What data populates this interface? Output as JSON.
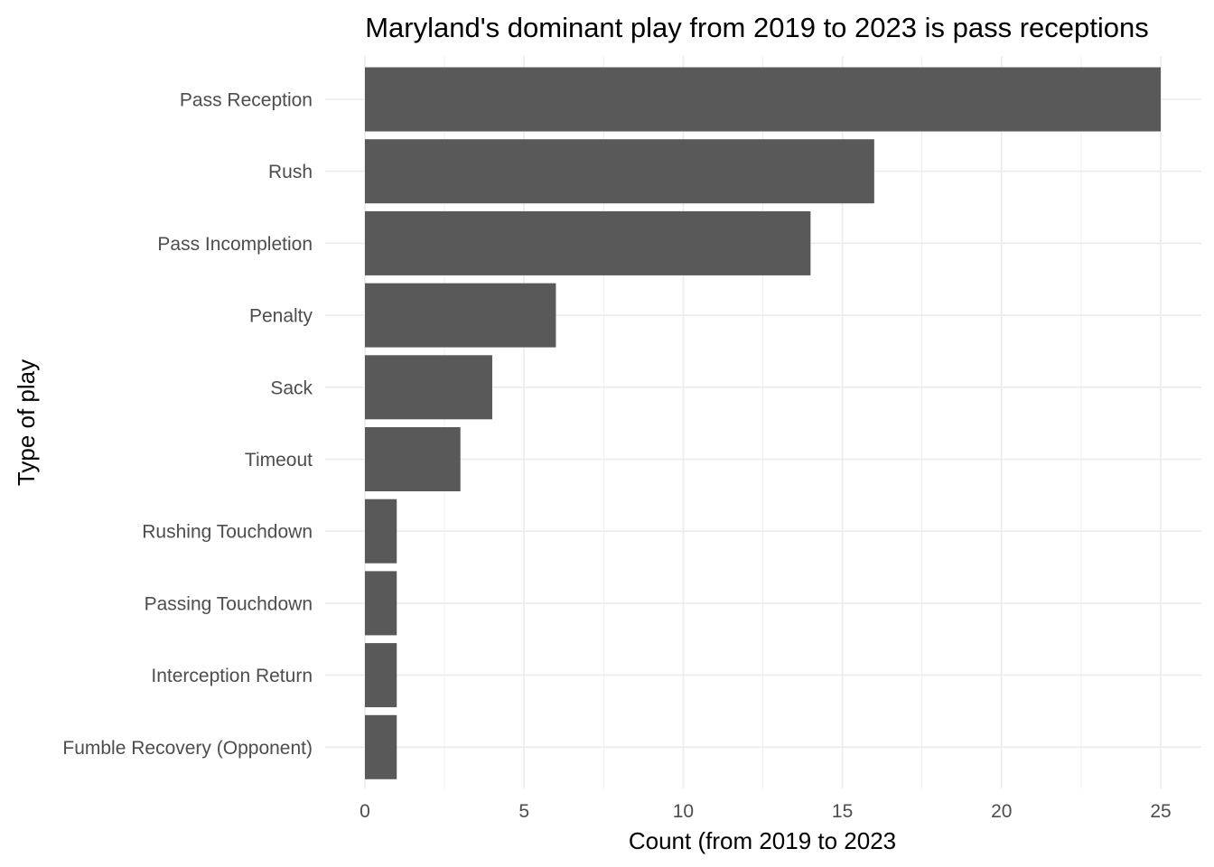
{
  "chart_data": {
    "type": "bar",
    "orientation": "horizontal",
    "title": "Maryland's dominant play from 2019 to 2023 is pass receptions",
    "xlabel": "Count (from 2019 to 2023",
    "ylabel": "Type of play",
    "categories": [
      "Pass Reception",
      "Rush",
      "Pass Incompletion",
      "Penalty",
      "Sack",
      "Timeout",
      "Rushing Touchdown",
      "Passing Touchdown",
      "Interception Return",
      "Fumble Recovery (Opponent)"
    ],
    "values": [
      25,
      16,
      14,
      6,
      4,
      3,
      1,
      1,
      1,
      1
    ],
    "xlim": [
      0,
      25
    ],
    "x_ticks": [
      0,
      5,
      10,
      15,
      20,
      25
    ],
    "bar_color": "#595959",
    "grid": true,
    "legend": "none"
  }
}
